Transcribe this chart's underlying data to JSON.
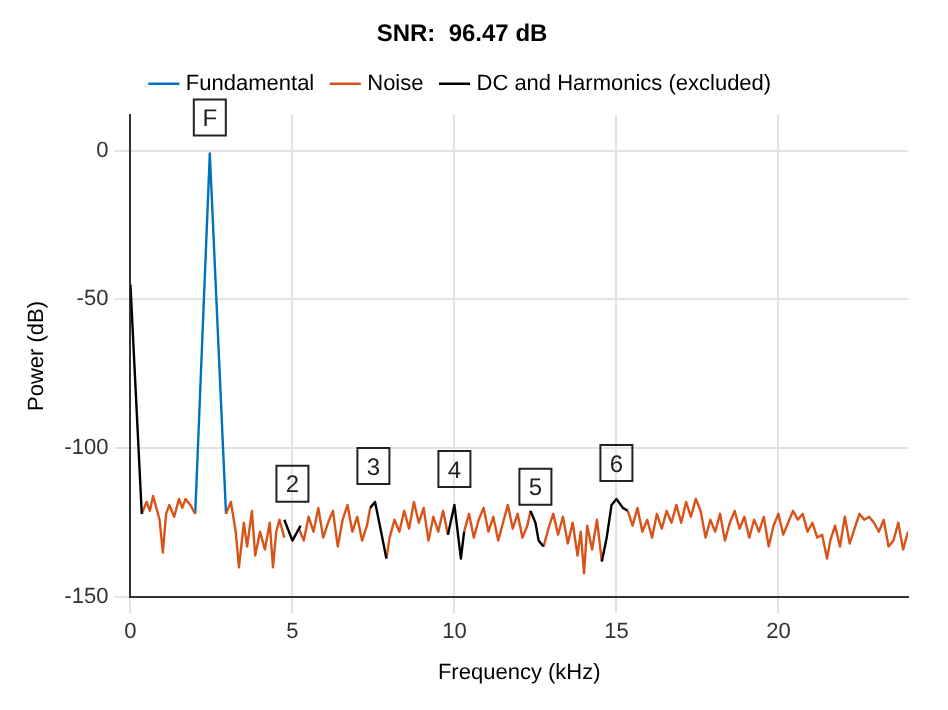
{
  "chart_data": {
    "type": "line",
    "title": "SNR:  96.47 dB",
    "xlabel": "Frequency (kHz)",
    "ylabel": "Power (dB)",
    "xlim": [
      0,
      24
    ],
    "xticks": [
      0,
      5,
      10,
      15,
      20
    ],
    "ylim": [
      -150,
      12
    ],
    "yticks": [
      -150,
      -100,
      -50,
      0
    ],
    "grid": true,
    "legend": "top",
    "line_style": "solid",
    "marker": "none",
    "series": [
      {
        "name": "Fundamental",
        "color": "#0072bd",
        "x": [
          2.0,
          2.45,
          2.95
        ],
        "values": [
          -122,
          -1,
          -122
        ]
      },
      {
        "name": "Noise",
        "color": "#d95319",
        "x": [
          0.35,
          0.5,
          0.6,
          0.7,
          0.8,
          0.9,
          1.0,
          1.1,
          1.2,
          1.35,
          1.5,
          1.6,
          1.7,
          1.85,
          2.0,
          2.5,
          2.95,
          3.1,
          3.25,
          3.35,
          3.5,
          3.6,
          3.75,
          3.85,
          4.0,
          4.15,
          4.3,
          4.4,
          4.5,
          4.6,
          4.75,
          4.9,
          5.05,
          5.1,
          5.2,
          5.35,
          5.5,
          5.65,
          5.8,
          5.95,
          6.1,
          6.25,
          6.4,
          6.55,
          6.7,
          6.85,
          7.0,
          7.15,
          7.3,
          7.4,
          7.6,
          7.9,
          8.0,
          8.15,
          8.3,
          8.45,
          8.6,
          8.75,
          8.9,
          9.05,
          9.2,
          9.35,
          9.5,
          9.65,
          9.8,
          10.0,
          10.3,
          10.45,
          10.6,
          10.75,
          10.9,
          11.05,
          11.2,
          11.35,
          11.5,
          11.65,
          11.8,
          11.95,
          12.1,
          12.25,
          12.35,
          12.5,
          12.75,
          12.9,
          13.05,
          13.2,
          13.35,
          13.5,
          13.65,
          13.8,
          13.9,
          14.0,
          14.1,
          14.25,
          14.4,
          14.55,
          15.0,
          15.35,
          15.5,
          15.65,
          15.8,
          15.95,
          16.1,
          16.25,
          16.4,
          16.55,
          16.7,
          16.85,
          17.0,
          17.15,
          17.3,
          17.45,
          17.6,
          17.75,
          17.9,
          18.05,
          18.2,
          18.35,
          18.5,
          18.65,
          18.8,
          18.95,
          19.1,
          19.25,
          19.4,
          19.55,
          19.7,
          19.85,
          20.0,
          20.15,
          20.3,
          20.45,
          20.6,
          20.75,
          20.9,
          21.05,
          21.2,
          21.35,
          21.5,
          21.6,
          21.75,
          21.9,
          22.05,
          22.2,
          22.35,
          22.5,
          22.65,
          22.8,
          22.95,
          23.1,
          23.25,
          23.4,
          23.55,
          23.7,
          23.85,
          24.0
        ],
        "values": [
          -122,
          -118,
          -121,
          -116,
          -120,
          -124,
          -135,
          -122,
          -119,
          -123,
          -117,
          -120,
          -117,
          -119,
          -122,
          null,
          -122,
          -118,
          -128,
          -140,
          -125,
          -133,
          -121,
          -136,
          -128,
          -134,
          -125,
          -140,
          -128,
          -124,
          -130,
          null,
          null,
          null,
          -127,
          -131,
          -123,
          -128,
          -120,
          -130,
          -125,
          -121,
          -133,
          -124,
          -119,
          -128,
          -123,
          -131,
          -126,
          -120,
          null,
          -137,
          -130,
          -124,
          -128,
          -121,
          -127,
          -118,
          -125,
          -120,
          -131,
          -123,
          -128,
          -121,
          -129,
          null,
          -128,
          -122,
          -130,
          -124,
          -120,
          -128,
          -123,
          -131,
          -125,
          -119,
          -127,
          -122,
          -130,
          -126,
          -121,
          null,
          -133,
          -127,
          -122,
          -129,
          -123,
          -132,
          -125,
          -136,
          -128,
          -142,
          -126,
          -134,
          -124,
          -138,
          null,
          -121,
          -126,
          -120,
          -128,
          -124,
          -130,
          -122,
          -127,
          -121,
          -125,
          -119,
          -125,
          -118,
          -123,
          -117,
          -121,
          -130,
          -124,
          -128,
          -122,
          -131,
          -125,
          -121,
          -127,
          -123,
          -130,
          -124,
          -128,
          -123,
          -133,
          -126,
          -122,
          -129,
          -125,
          -121,
          -124,
          -122,
          -128,
          -125,
          -130,
          -129,
          -137,
          -131,
          -126,
          -133,
          -123,
          -132,
          -127,
          -122,
          -124,
          -123,
          -125,
          -128,
          -124,
          -133,
          -131,
          -125,
          -134,
          -128
        ]
      },
      {
        "name": "DC and Harmonics (excluded)",
        "color": "#000000",
        "x": [
          0,
          0.35,
          2.0,
          4.75,
          5.0,
          5.25,
          6.0,
          7.4,
          7.55,
          7.7,
          7.9,
          9.0,
          9.8,
          10.0,
          10.2,
          10.3,
          11.0,
          12.35,
          12.5,
          12.6,
          12.75,
          13.5,
          14.55,
          14.7,
          14.85,
          15.0,
          15.2,
          15.35
        ],
        "values": [
          -45,
          -122,
          null,
          -124,
          -131,
          -126,
          null,
          -120,
          -118,
          -126,
          -137,
          null,
          -129,
          -119,
          -137,
          -128,
          null,
          -121,
          -125,
          -131,
          -133,
          null,
          -138,
          -130,
          -119,
          -117,
          -120,
          -121
        ]
      }
    ],
    "annotations": [
      {
        "text": "F",
        "x": 2.45,
        "y": -1
      },
      {
        "text": "2",
        "x": 5,
        "y": -124
      },
      {
        "text": "3",
        "x": 7.5,
        "y": -118
      },
      {
        "text": "4",
        "x": 10,
        "y": -119
      },
      {
        "text": "5",
        "x": 12.5,
        "y": -125
      },
      {
        "text": "6",
        "x": 15,
        "y": -117
      }
    ]
  }
}
